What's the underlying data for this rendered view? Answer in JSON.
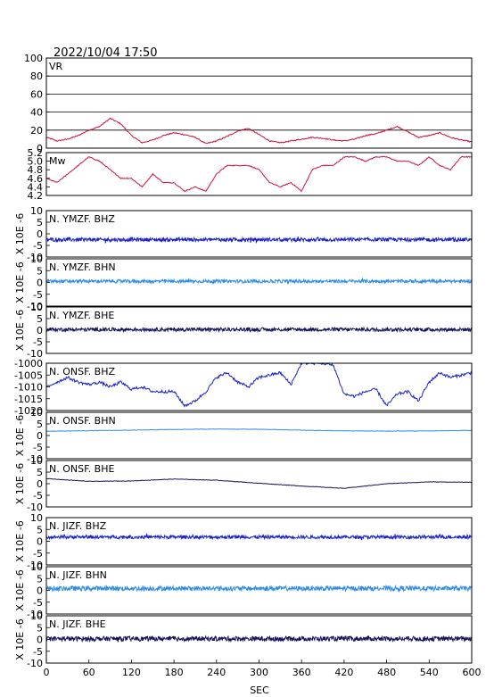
{
  "header": {
    "datetime": "2022/10/04  17:50"
  },
  "x_axis": {
    "label": "SEC",
    "ticks": [
      "0",
      "60",
      "120",
      "180",
      "240",
      "300",
      "360",
      "420",
      "480",
      "540",
      "600"
    ]
  },
  "chart_data": [
    {
      "type": "line",
      "title": "VR",
      "xlim": [
        0,
        600
      ],
      "ylim": [
        0,
        100
      ],
      "yticks": [
        "100",
        "80",
        "60",
        "40",
        "20",
        "0"
      ],
      "ytick_values": [
        100,
        80,
        60,
        40,
        20,
        0
      ],
      "grid": true,
      "color": "#d0103a",
      "series": [
        {
          "x": [
            0,
            15,
            30,
            45,
            60,
            75,
            90,
            105,
            120,
            135,
            150,
            165,
            180,
            195,
            210,
            225,
            240,
            255,
            270,
            285,
            300,
            315,
            330,
            345,
            360,
            375,
            390,
            405,
            420,
            435,
            450,
            465,
            480,
            495,
            510,
            525,
            540,
            555,
            570,
            585,
            600
          ],
          "values": [
            12,
            8,
            10,
            14,
            20,
            24,
            33,
            27,
            14,
            6,
            9,
            14,
            17,
            15,
            12,
            5,
            8,
            13,
            19,
            22,
            15,
            8,
            6,
            8,
            10,
            12,
            11,
            9,
            8,
            10,
            14,
            16,
            20,
            24,
            18,
            12,
            14,
            17,
            12,
            9,
            7
          ]
        }
      ]
    },
    {
      "type": "line",
      "title": "Mw",
      "xlim": [
        0,
        600
      ],
      "ylim": [
        4.2,
        5.2
      ],
      "yticks": [
        "5.2",
        "5.0",
        "4.8",
        "4.6",
        "4.4",
        "4.2"
      ],
      "ytick_values": [
        5.2,
        5.0,
        4.8,
        4.6,
        4.4,
        4.2
      ],
      "grid": false,
      "color": "#d0103a",
      "series": [
        {
          "x": [
            0,
            15,
            30,
            45,
            60,
            75,
            90,
            105,
            120,
            135,
            150,
            165,
            180,
            195,
            210,
            225,
            240,
            255,
            270,
            285,
            300,
            315,
            330,
            345,
            360,
            375,
            390,
            405,
            420,
            435,
            450,
            465,
            480,
            495,
            510,
            525,
            540,
            555,
            570,
            585,
            600
          ],
          "values": [
            4.6,
            4.5,
            4.7,
            4.9,
            5.1,
            5.0,
            4.8,
            4.6,
            4.6,
            4.4,
            4.7,
            4.5,
            4.5,
            4.3,
            4.4,
            4.3,
            4.7,
            4.9,
            4.9,
            4.9,
            4.8,
            4.5,
            4.4,
            4.5,
            4.3,
            4.8,
            4.9,
            4.9,
            5.1,
            5.1,
            5.0,
            5.1,
            5.1,
            5.0,
            5.0,
            4.9,
            5.1,
            4.9,
            4.8,
            5.1,
            5.1
          ]
        }
      ]
    },
    {
      "type": "line",
      "title": "N. YMZF. BHZ",
      "ylabel": "X 10E -6",
      "ylim": [
        -10,
        10
      ],
      "yticks": [
        "10",
        "5",
        "0",
        "-5",
        "-10"
      ],
      "ytick_values": [
        10,
        5,
        0,
        -5,
        -10
      ],
      "color": "#1a22c8",
      "offset": -2.5,
      "noise_amplitude": 0.8
    },
    {
      "type": "line",
      "title": "N. YMZF. BHN",
      "ylabel": "X 10E -6",
      "ylim": [
        -10,
        10
      ],
      "yticks": [
        "10",
        "5",
        "0",
        "-5",
        "-10"
      ],
      "ytick_values": [
        10,
        5,
        0,
        -5,
        -10
      ],
      "color": "#2e8ce8",
      "offset": 0.5,
      "noise_amplitude": 0.7
    },
    {
      "type": "line",
      "title": "N. YMZF. BHE",
      "ylabel": "X 10E -6",
      "ylim": [
        -10,
        10
      ],
      "yticks": [
        "10",
        "5",
        "0",
        "-5",
        "-10"
      ],
      "ytick_values": [
        10,
        5,
        0,
        -5,
        -10
      ],
      "color": "#14145a",
      "offset": 0.3,
      "noise_amplitude": 0.8
    },
    {
      "type": "line",
      "title": "N. ONSF. BHZ",
      "ylim": [
        -1020,
        -1000
      ],
      "yticks": [
        "-1000",
        "-1005",
        "-1010",
        "-1015",
        "-1020"
      ],
      "ytick_values": [
        -1000,
        -1005,
        -1010,
        -1015,
        -1020
      ],
      "color": "#1a22c8",
      "series": [
        {
          "x": [
            0,
            15,
            30,
            45,
            60,
            75,
            90,
            105,
            120,
            135,
            150,
            165,
            180,
            195,
            210,
            225,
            240,
            255,
            270,
            285,
            300,
            315,
            330,
            345,
            360,
            375,
            390,
            405,
            420,
            435,
            450,
            465,
            480,
            495,
            510,
            525,
            540,
            555,
            570,
            585,
            600
          ],
          "values": [
            -1010,
            -1008,
            -1006,
            -1008,
            -1009,
            -1008,
            -1010,
            -1008,
            -1011,
            -1010,
            -1012,
            -1012,
            -1012,
            -1018,
            -1016,
            -1012,
            -1006,
            -1004,
            -1008,
            -1010,
            -1006,
            -1005,
            -1004,
            -1009,
            -1000,
            -1000,
            -1000,
            -1001,
            -1013,
            -1014,
            -1012,
            -1011,
            -1018,
            -1013,
            -1012,
            -1016,
            -1008,
            -1004,
            -1006,
            -1005,
            -1004
          ]
        }
      ]
    },
    {
      "type": "line",
      "title": "N. ONSF. BHN",
      "ylabel": "X 10E -6",
      "ylim": [
        -10,
        10
      ],
      "yticks": [
        "10",
        "5",
        "0",
        "-5",
        "-10"
      ],
      "ytick_values": [
        10,
        5,
        0,
        -5,
        -10
      ],
      "color": "#2e8ce8",
      "series": [
        {
          "x": [
            0,
            60,
            120,
            180,
            240,
            300,
            360,
            420,
            480,
            540,
            600
          ],
          "values": [
            1.8,
            2.1,
            2.3,
            2.6,
            2.8,
            2.7,
            2.3,
            2.0,
            1.9,
            2.0,
            2.2
          ]
        }
      ]
    },
    {
      "type": "line",
      "title": "N. ONSF. BHE",
      "ylabel": "X 10E -6",
      "ylim": [
        -10,
        10
      ],
      "yticks": [
        "10",
        "5",
        "0",
        "-5",
        "-10"
      ],
      "ytick_values": [
        10,
        5,
        0,
        -5,
        -10
      ],
      "color": "#14145a",
      "series": [
        {
          "x": [
            0,
            60,
            120,
            180,
            240,
            300,
            360,
            420,
            480,
            540,
            600
          ],
          "values": [
            2.2,
            1.0,
            1.2,
            2.0,
            1.5,
            0.2,
            -1.0,
            -2.0,
            0.0,
            0.8,
            0.6
          ]
        }
      ]
    },
    {
      "type": "line",
      "title": "N. JIZF. BHZ",
      "ylabel": "X 10E -6",
      "ylim": [
        -10,
        10
      ],
      "yticks": [
        "10",
        "5",
        "0",
        "-5",
        "-10"
      ],
      "ytick_values": [
        10,
        5,
        0,
        -5,
        -10
      ],
      "color": "#1a22c8",
      "offset": 1.8,
      "noise_amplitude": 0.7
    },
    {
      "type": "line",
      "title": "N. JIZF. BHN",
      "ylabel": "X 10E -6",
      "ylim": [
        -10,
        10
      ],
      "yticks": [
        "10",
        "5",
        "0",
        "-5",
        "-10"
      ],
      "ytick_values": [
        10,
        5,
        0,
        -5,
        -10
      ],
      "color": "#2e8ce8",
      "offset": 0.8,
      "noise_amplitude": 1.0
    },
    {
      "type": "line",
      "title": "N. JIZF. BHE",
      "ylabel": "X 10E -6",
      "ylim": [
        -10,
        10
      ],
      "yticks": [
        "10",
        "5",
        "0",
        "-5",
        "-10"
      ],
      "ytick_values": [
        10,
        5,
        0,
        -5,
        -10
      ],
      "color": "#14145a",
      "offset": 0.3,
      "noise_amplitude": 1.0
    }
  ]
}
